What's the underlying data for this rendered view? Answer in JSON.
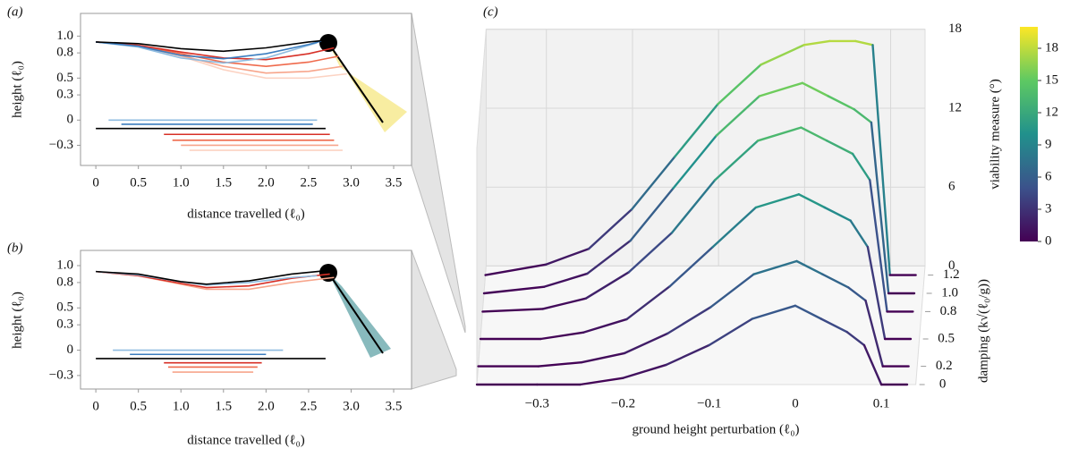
{
  "chart_data": [
    {
      "type": "line",
      "panel_label": "(a)",
      "xlabel": "distance travelled (ℓ₀)",
      "ylabel": "height (ℓ₀)",
      "xlim": [
        -0.18,
        3.71
      ],
      "ylim": [
        -0.54,
        1.27
      ],
      "xticks": [
        0,
        0.5,
        {
          "value": 1,
          "label": "1.0"
        },
        1.5,
        {
          "value": 2,
          "label": "2.0"
        },
        2.5,
        {
          "value": 3,
          "label": "3.0"
        },
        3.5
      ],
      "yticks": [
        {
          "value": -0.3,
          "label": "−0.3"
        },
        0,
        0.3,
        0.5,
        0.8,
        {
          "value": 1,
          "label": "1.0"
        }
      ],
      "series": [
        {
          "color": "#fcd3c3",
          "x": [
            0,
            0.5,
            1,
            1.5,
            2,
            2.5,
            2.95
          ],
          "values": [
            0.93,
            0.88,
            0.76,
            0.6,
            0.5,
            0.5,
            0.55
          ]
        },
        {
          "color": "#f7a58b",
          "x": [
            0,
            0.5,
            1,
            1.5,
            2,
            2.5,
            2.9
          ],
          "values": [
            0.93,
            0.88,
            0.77,
            0.64,
            0.56,
            0.58,
            0.64
          ]
        },
        {
          "color": "#ef6a4c",
          "x": [
            0,
            0.5,
            1,
            1.5,
            2,
            2.5,
            2.85
          ],
          "values": [
            0.93,
            0.89,
            0.79,
            0.69,
            0.64,
            0.69,
            0.76
          ]
        },
        {
          "color": "#d73027",
          "x": [
            0,
            0.5,
            1,
            1.5,
            2,
            2.5,
            2.8
          ],
          "values": [
            0.93,
            0.89,
            0.81,
            0.74,
            0.72,
            0.79,
            0.86
          ]
        },
        {
          "color": "#8fbce0",
          "x": [
            0,
            0.5,
            1,
            1.5,
            2,
            2.4,
            2.6
          ],
          "values": [
            0.93,
            0.87,
            0.74,
            0.68,
            0.74,
            0.86,
            0.92
          ]
        },
        {
          "color": "#3b7dbf",
          "x": [
            0,
            0.5,
            1,
            1.5,
            2,
            2.5,
            2.65
          ],
          "values": [
            0.93,
            0.88,
            0.77,
            0.73,
            0.79,
            0.9,
            0.94
          ]
        },
        {
          "color": "#000000",
          "x": [
            0,
            0.5,
            1,
            1.5,
            2,
            2.5,
            2.7
          ],
          "values": [
            0.93,
            0.91,
            0.85,
            0.82,
            0.86,
            0.93,
            0.95
          ]
        },
        {
          "color": "#8fbce0",
          "x": [
            0.15,
            2.6
          ],
          "values": [
            0,
            0
          ]
        },
        {
          "color": "#3b7dbf",
          "x": [
            0.3,
            2.55
          ],
          "values": [
            -0.05,
            -0.05
          ]
        },
        {
          "color": "#d73027",
          "x": [
            0.8,
            2.75
          ],
          "values": [
            -0.17,
            -0.17
          ]
        },
        {
          "color": "#ef6a4c",
          "x": [
            0.9,
            2.8
          ],
          "values": [
            -0.24,
            -0.24
          ]
        },
        {
          "color": "#f7a58b",
          "x": [
            1.0,
            2.85
          ],
          "values": [
            -0.3,
            -0.3
          ]
        },
        {
          "color": "#fcd3c3",
          "x": [
            1.1,
            2.9
          ],
          "values": [
            -0.36,
            -0.36
          ]
        },
        {
          "color": "#000000",
          "x": [
            0,
            2.7
          ],
          "values": [
            -0.1,
            -0.1
          ]
        }
      ]
    },
    {
      "type": "line",
      "panel_label": "(b)",
      "xlabel": "distance travelled (ℓ₀)",
      "ylabel": "height (ℓ₀)",
      "xlim": [
        -0.18,
        3.71
      ],
      "ylim": [
        -0.46,
        1.18
      ],
      "xticks": [
        0,
        0.5,
        {
          "value": 1,
          "label": "1.0"
        },
        1.5,
        {
          "value": 2,
          "label": "2.0"
        },
        2.5,
        {
          "value": 3,
          "label": "3.0"
        },
        3.5
      ],
      "yticks": [
        {
          "value": -0.3,
          "label": "−0.3"
        },
        0,
        0.3,
        0.5,
        0.8,
        {
          "value": 1,
          "label": "1.0"
        }
      ],
      "series": [
        {
          "color": "#f7a58b",
          "x": [
            0,
            0.5,
            1,
            1.3,
            1.8,
            2.3,
            2.8
          ],
          "values": [
            0.93,
            0.88,
            0.78,
            0.72,
            0.72,
            0.8,
            0.86
          ]
        },
        {
          "color": "#d73027",
          "x": [
            0,
            0.5,
            1,
            1.3,
            1.8,
            2.3,
            2.75
          ],
          "values": [
            0.93,
            0.88,
            0.79,
            0.74,
            0.76,
            0.85,
            0.9
          ]
        },
        {
          "color": "#8fbce0",
          "x": [
            0,
            0.5,
            1,
            1.3,
            1.8,
            2.3,
            2.6
          ],
          "values": [
            0.93,
            0.89,
            0.81,
            0.77,
            0.8,
            0.86,
            0.88
          ]
        },
        {
          "color": "#000000",
          "x": [
            0,
            0.5,
            1,
            1.3,
            1.8,
            2.3,
            2.7
          ],
          "values": [
            0.93,
            0.9,
            0.81,
            0.78,
            0.82,
            0.9,
            0.94
          ]
        },
        {
          "color": "#8fbce0",
          "x": [
            0.2,
            2.2
          ],
          "values": [
            0,
            0
          ]
        },
        {
          "color": "#3b7dbf",
          "x": [
            0.4,
            2.0
          ],
          "values": [
            -0.05,
            -0.05
          ]
        },
        {
          "color": "#d73027",
          "x": [
            0.8,
            1.95
          ],
          "values": [
            -0.15,
            -0.15
          ]
        },
        {
          "color": "#ef6a4c",
          "x": [
            0.85,
            1.9
          ],
          "values": [
            -0.2,
            -0.2
          ]
        },
        {
          "color": "#f7a58b",
          "x": [
            0.9,
            1.85
          ],
          "values": [
            -0.26,
            -0.26
          ]
        },
        {
          "color": "#000000",
          "x": [
            0,
            2.7
          ],
          "values": [
            -0.1,
            -0.1
          ]
        }
      ]
    },
    {
      "type": "line3d",
      "panel_label": "(c)",
      "xlabel": "ground height perturbation (ℓ₀)",
      "ylabel": "damping (k√(ℓ₀/g))",
      "zlabel": "viability measure (°)",
      "colormap": "viridis",
      "clim": [
        0,
        20
      ],
      "cticks": [
        0,
        3,
        6,
        9,
        12,
        15,
        18
      ],
      "xlim": [
        -0.37,
        0.14
      ],
      "ylim": [
        0,
        1.3
      ],
      "zlim": [
        0,
        18
      ],
      "xticks": [
        {
          "value": -0.3,
          "label": "−0.3"
        },
        {
          "value": -0.2,
          "label": "−0.2"
        },
        {
          "value": -0.1,
          "label": "−0.1"
        },
        0,
        0.1
      ],
      "yticks": [
        0,
        0.2,
        0.5,
        0.8,
        {
          "value": 1,
          "label": "1.0"
        },
        1.2
      ],
      "zticks": [
        0,
        6,
        12,
        18
      ],
      "x": [
        -0.37,
        -0.3,
        -0.25,
        -0.2,
        -0.15,
        -0.1,
        -0.05,
        0,
        0.03,
        0.06,
        0.08,
        0.1,
        0.13
      ],
      "series": [
        {
          "damping": 0,
          "values": [
            0,
            0,
            0,
            0.5,
            1.5,
            3,
            5,
            6,
            5,
            4,
            3,
            0,
            0
          ]
        },
        {
          "damping": 0.2,
          "values": [
            0,
            0,
            0.3,
            1,
            2.5,
            4.5,
            7,
            8,
            7,
            6,
            5,
            0,
            0
          ]
        },
        {
          "damping": 0.5,
          "values": [
            0,
            0,
            0.5,
            1.5,
            4,
            7,
            10,
            11,
            10,
            9,
            7,
            0,
            0
          ]
        },
        {
          "damping": 0.8,
          "values": [
            0,
            0.2,
            1,
            3,
            6,
            10,
            13,
            14,
            13,
            12,
            10,
            0,
            0
          ]
        },
        {
          "damping": 1,
          "values": [
            0,
            0.5,
            1.5,
            4,
            8,
            12,
            15,
            16,
            15,
            14,
            13,
            0,
            0
          ]
        },
        {
          "damping": 1.2,
          "values": [
            0,
            0.8,
            2,
            5,
            9,
            13,
            16,
            17.5,
            17.8,
            17.8,
            17.5,
            0,
            0
          ]
        }
      ]
    }
  ]
}
